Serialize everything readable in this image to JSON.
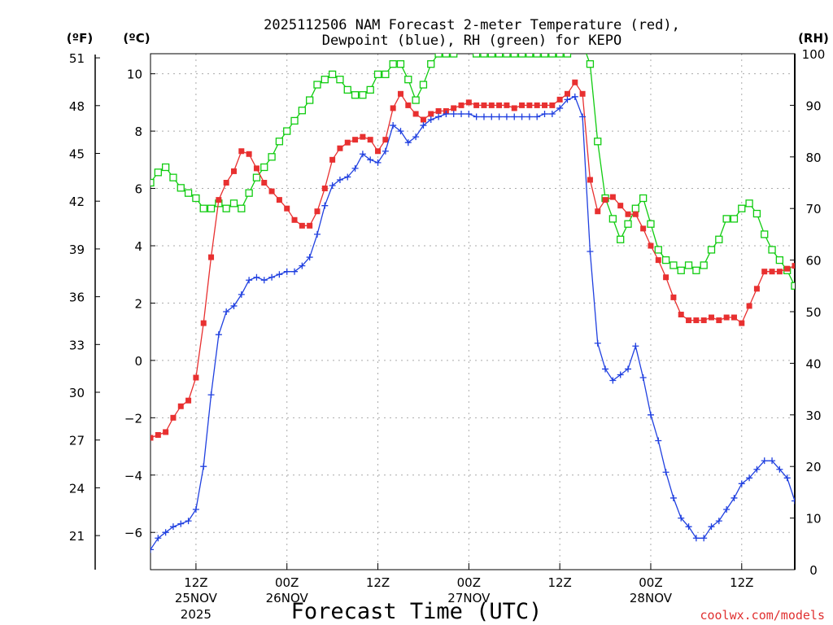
{
  "chart_data": {
    "type": "line",
    "title_line1": "2025112506 NAM Forecast 2-meter Temperature (red),",
    "title_line2": "Dewpoint (blue), RH (green) for KEPO",
    "xlabel": "Forecast Time (UTC)",
    "credit": "coolwx.com/models",
    "unit_labels": {
      "f": "(ºF)",
      "c": "(ºC)",
      "rh": "(RH)"
    },
    "colors": {
      "temperature": "#e83030",
      "dewpoint": "#2040e0",
      "rh": "#10cc10"
    },
    "x_range_hours": [
      0,
      85
    ],
    "ylim_c": [
      -7.3,
      10.7
    ],
    "ylim_rh": [
      0,
      100
    ],
    "grid": true,
    "x_ticks": [
      {
        "hour": 6,
        "label": "12Z",
        "date": "25NOV",
        "year": "2025"
      },
      {
        "hour": 18,
        "label": "00Z",
        "date": "26NOV",
        "year": ""
      },
      {
        "hour": 30,
        "label": "12Z",
        "date": "",
        "year": ""
      },
      {
        "hour": 42,
        "label": "00Z",
        "date": "27NOV",
        "year": ""
      },
      {
        "hour": 54,
        "label": "12Z",
        "date": "",
        "year": ""
      },
      {
        "hour": 66,
        "label": "00Z",
        "date": "28NOV",
        "year": ""
      },
      {
        "hour": 78,
        "label": "12Z",
        "date": "",
        "year": ""
      }
    ],
    "y_ticks_c": [
      10,
      8,
      6,
      4,
      2,
      0,
      -2,
      -4,
      -6
    ],
    "y_ticks_c_labels": [
      "10",
      "8",
      "6",
      "4",
      "2",
      "0",
      "−2",
      "−4",
      "−6"
    ],
    "y_ticks_f": [
      51,
      48,
      45,
      42,
      39,
      36,
      33,
      30,
      27,
      24,
      21
    ],
    "y_ticks_rh": [
      100,
      90,
      80,
      70,
      60,
      50,
      40,
      30,
      20,
      10,
      0
    ],
    "hours": [
      0,
      1,
      2,
      3,
      4,
      5,
      6,
      7,
      8,
      9,
      10,
      11,
      12,
      13,
      14,
      15,
      16,
      17,
      18,
      19,
      20,
      21,
      22,
      23,
      24,
      25,
      26,
      27,
      28,
      29,
      30,
      31,
      32,
      33,
      34,
      35,
      36,
      37,
      38,
      39,
      40,
      41,
      42,
      43,
      44,
      45,
      46,
      47,
      48,
      49,
      50,
      51,
      52,
      53,
      54,
      55,
      56,
      57,
      58,
      59,
      60,
      61,
      62,
      63,
      64,
      65,
      66,
      67,
      68,
      69,
      70,
      71,
      72,
      73,
      74,
      75,
      76,
      77,
      78,
      79,
      80,
      81,
      82,
      83,
      84,
      85
    ],
    "series": [
      {
        "name": "Temperature (red)",
        "unit": "C",
        "values": [
          -2.7,
          -2.6,
          -2.5,
          -2.0,
          -1.6,
          -1.4,
          -0.6,
          1.3,
          3.6,
          5.6,
          6.2,
          6.6,
          7.3,
          7.2,
          6.7,
          6.2,
          5.9,
          5.6,
          5.3,
          4.9,
          4.7,
          4.7,
          5.2,
          6.0,
          7.0,
          7.4,
          7.6,
          7.7,
          7.8,
          7.7,
          7.3,
          7.7,
          8.8,
          9.3,
          8.9,
          8.6,
          8.4,
          8.6,
          8.7,
          8.7,
          8.8,
          8.9,
          9.0,
          8.9,
          8.9,
          8.9,
          8.9,
          8.9,
          8.8,
          8.9,
          8.9,
          8.9,
          8.9,
          8.9,
          9.1,
          9.3,
          9.7,
          9.3,
          6.3,
          5.2,
          5.6,
          5.7,
          5.4,
          5.1,
          5.1,
          4.6,
          4.0,
          3.5,
          2.9,
          2.2,
          1.6,
          1.4,
          1.4,
          1.4,
          1.5,
          1.4,
          1.5,
          1.5,
          1.3,
          1.9,
          2.5,
          3.1,
          3.1,
          3.1,
          3.2,
          3.3
        ]
      },
      {
        "name": "Dewpoint (blue)",
        "unit": "C",
        "values": [
          -6.6,
          -6.2,
          -6.0,
          -5.8,
          -5.7,
          -5.6,
          -5.2,
          -3.7,
          -1.2,
          0.9,
          1.7,
          1.9,
          2.3,
          2.8,
          2.9,
          2.8,
          2.9,
          3.0,
          3.1,
          3.1,
          3.3,
          3.6,
          4.4,
          5.4,
          6.1,
          6.3,
          6.4,
          6.7,
          7.2,
          7.0,
          6.9,
          7.3,
          8.2,
          8.0,
          7.6,
          7.8,
          8.2,
          8.4,
          8.5,
          8.6,
          8.6,
          8.6,
          8.6,
          8.5,
          8.5,
          8.5,
          8.5,
          8.5,
          8.5,
          8.5,
          8.5,
          8.5,
          8.6,
          8.6,
          8.8,
          9.1,
          9.2,
          8.5,
          3.8,
          0.6,
          -0.3,
          -0.7,
          -0.5,
          -0.3,
          0.5,
          -0.6,
          -1.9,
          -2.8,
          -3.9,
          -4.8,
          -5.5,
          -5.8,
          -6.2,
          -6.2,
          -5.8,
          -5.6,
          -5.2,
          -4.8,
          -4.3,
          -4.1,
          -3.8,
          -3.5,
          -3.5,
          -3.8,
          -4.1,
          -4.9
        ]
      },
      {
        "name": "RH (green)",
        "unit": "%",
        "values": [
          75,
          77,
          78,
          76,
          74,
          73,
          72,
          70,
          70,
          71,
          70,
          71,
          70,
          73,
          76,
          78,
          80,
          83,
          85,
          87,
          89,
          91,
          94,
          95,
          96,
          95,
          93,
          92,
          92,
          93,
          96,
          96,
          98,
          98,
          95,
          91,
          94,
          98,
          100,
          100,
          100,
          101,
          101,
          100,
          100,
          100,
          100,
          100,
          100,
          100,
          100,
          100,
          100,
          100,
          100,
          100,
          101,
          102,
          98,
          83,
          72,
          68,
          64,
          67,
          70,
          72,
          67,
          62,
          60,
          59,
          58,
          59,
          58,
          59,
          62,
          64,
          68,
          68,
          70,
          71,
          69,
          65,
          62,
          60,
          58,
          55
        ]
      }
    ]
  }
}
